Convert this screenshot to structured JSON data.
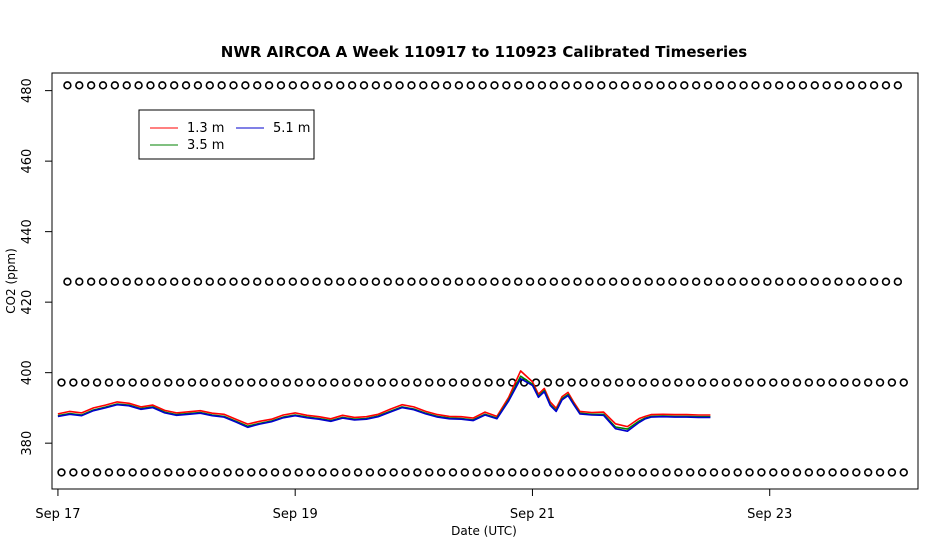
{
  "chart_data": {
    "type": "line",
    "title": "NWR AIRCOA A  Week 110917 to 110923  Calibrated Timeseries",
    "xlabel": "Date (UTC)",
    "ylabel": "CO2 (ppm)",
    "x_ticks": [
      {
        "day": 0,
        "label": "Sep 17"
      },
      {
        "day": 2,
        "label": "Sep 19"
      },
      {
        "day": 4,
        "label": "Sep 21"
      },
      {
        "day": 6,
        "label": "Sep 23"
      }
    ],
    "y_ticks": [
      380,
      400,
      420,
      440,
      460,
      480
    ],
    "xlim": [
      -0.05,
      7.25
    ],
    "ylim": [
      367,
      485
    ],
    "legend": {
      "placement": "top-left",
      "entries": [
        {
          "name": "1.3 m",
          "color": "#ff0000"
        },
        {
          "name": "3.5 m",
          "color": "#008000"
        },
        {
          "name": "5.1 m",
          "color": "#0000cc"
        }
      ]
    },
    "series": [
      {
        "name": "1.3 m",
        "color": "#ff0000",
        "x": [
          0.0,
          0.1,
          0.2,
          0.3,
          0.4,
          0.5,
          0.6,
          0.7,
          0.8,
          0.9,
          1.0,
          1.1,
          1.2,
          1.3,
          1.4,
          1.5,
          1.6,
          1.7,
          1.8,
          1.9,
          2.0,
          2.1,
          2.2,
          2.3,
          2.4,
          2.5,
          2.6,
          2.7,
          2.8,
          2.9,
          3.0,
          3.1,
          3.2,
          3.3,
          3.4,
          3.5,
          3.6,
          3.7,
          3.8,
          3.9,
          4.0,
          4.05,
          4.1,
          4.15,
          4.2,
          4.25,
          4.3,
          4.35,
          4.4,
          4.5,
          4.6,
          4.7,
          4.8,
          4.9,
          4.95,
          5.0,
          5.1,
          5.2,
          5.3,
          5.4,
          5.5
        ],
        "values": [
          388.3,
          389.0,
          388.6,
          390.0,
          390.8,
          391.7,
          391.3,
          390.3,
          390.8,
          389.3,
          388.6,
          388.9,
          389.2,
          388.5,
          388.2,
          386.8,
          385.4,
          386.2,
          386.8,
          388.0,
          388.6,
          387.9,
          387.5,
          386.9,
          387.9,
          387.3,
          387.5,
          388.2,
          389.6,
          390.9,
          390.3,
          389.0,
          388.1,
          387.6,
          387.5,
          387.1,
          388.8,
          387.6,
          393.0,
          400.5,
          397.4,
          393.9,
          395.5,
          391.7,
          389.9,
          393.2,
          394.4,
          391.5,
          389.0,
          388.7,
          388.8,
          385.5,
          384.7,
          387.0,
          387.6,
          388.1,
          388.2,
          388.1,
          388.1,
          388.0,
          388.0
        ]
      },
      {
        "name": "3.5 m",
        "color": "#008000",
        "x": [
          0.0,
          0.1,
          0.2,
          0.3,
          0.4,
          0.5,
          0.6,
          0.7,
          0.8,
          0.9,
          1.0,
          1.1,
          1.2,
          1.3,
          1.4,
          1.5,
          1.6,
          1.7,
          1.8,
          1.9,
          2.0,
          2.1,
          2.2,
          2.3,
          2.4,
          2.5,
          2.6,
          2.7,
          2.8,
          2.9,
          3.0,
          3.1,
          3.2,
          3.3,
          3.4,
          3.5,
          3.6,
          3.7,
          3.8,
          3.9,
          4.0,
          4.05,
          4.1,
          4.15,
          4.2,
          4.25,
          4.3,
          4.35,
          4.4,
          4.5,
          4.6,
          4.7,
          4.8,
          4.9,
          4.95,
          5.0,
          5.1,
          5.2,
          5.3,
          5.4,
          5.5
        ],
        "values": [
          387.8,
          388.4,
          388.0,
          389.4,
          390.2,
          391.1,
          390.8,
          389.8,
          390.3,
          388.8,
          388.1,
          388.4,
          388.7,
          388.0,
          387.6,
          386.2,
          384.8,
          385.6,
          386.3,
          387.4,
          388.0,
          387.4,
          387.0,
          386.4,
          387.3,
          386.8,
          387.0,
          387.7,
          389.0,
          390.3,
          389.7,
          388.5,
          387.6,
          387.1,
          387.0,
          386.6,
          388.2,
          387.1,
          392.3,
          399.0,
          396.7,
          393.3,
          394.9,
          391.0,
          389.3,
          392.6,
          393.8,
          391.0,
          388.5,
          388.2,
          388.2,
          384.6,
          384.0,
          386.3,
          387.1,
          387.6,
          387.7,
          387.6,
          387.6,
          387.5,
          387.5
        ]
      },
      {
        "name": "5.1 m",
        "color": "#0000cc",
        "x": [
          0.0,
          0.1,
          0.2,
          0.3,
          0.4,
          0.5,
          0.6,
          0.7,
          0.8,
          0.9,
          1.0,
          1.1,
          1.2,
          1.3,
          1.4,
          1.5,
          1.6,
          1.7,
          1.8,
          1.9,
          2.0,
          2.1,
          2.2,
          2.3,
          2.4,
          2.5,
          2.6,
          2.7,
          2.8,
          2.9,
          3.0,
          3.1,
          3.2,
          3.3,
          3.4,
          3.5,
          3.6,
          3.7,
          3.8,
          3.9,
          4.0,
          4.05,
          4.1,
          4.15,
          4.2,
          4.25,
          4.3,
          4.35,
          4.4,
          4.5,
          4.6,
          4.7,
          4.8,
          4.9,
          4.95,
          5.0,
          5.1,
          5.2,
          5.3,
          5.4,
          5.5
        ],
        "values": [
          387.6,
          388.2,
          387.8,
          389.2,
          390.0,
          390.9,
          390.6,
          389.6,
          390.1,
          388.6,
          387.9,
          388.2,
          388.5,
          387.8,
          387.4,
          386.0,
          384.5,
          385.4,
          386.1,
          387.2,
          387.8,
          387.2,
          386.8,
          386.2,
          387.1,
          386.6,
          386.8,
          387.5,
          388.8,
          390.1,
          389.5,
          388.3,
          387.4,
          386.9,
          386.8,
          386.4,
          388.0,
          386.9,
          392.0,
          398.3,
          396.4,
          393.0,
          394.6,
          390.7,
          389.0,
          392.3,
          393.5,
          390.8,
          388.3,
          388.0,
          387.9,
          384.1,
          383.4,
          385.9,
          386.9,
          387.4,
          387.5,
          387.4,
          387.4,
          387.3,
          387.3
        ]
      }
    ],
    "marker_rows": [
      {
        "y": 481.5,
        "x_start": 0.08,
        "x_end": 7.17,
        "step": 0.1
      },
      {
        "y": 425.8,
        "x_start": 0.08,
        "x_end": 7.17,
        "step": 0.1
      },
      {
        "y": 397.2,
        "x_start": 0.03,
        "x_end": 7.17,
        "step": 0.1
      },
      {
        "y": 371.7,
        "x_start": 0.03,
        "x_end": 7.17,
        "step": 0.1
      }
    ]
  }
}
